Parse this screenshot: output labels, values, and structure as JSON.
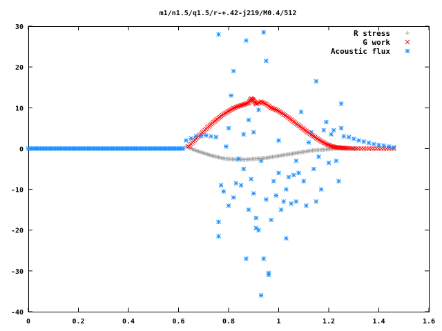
{
  "chart_data": {
    "type": "scatter",
    "title": "m1/n1.5/q1.5/r-+.42-j219/M0.4/512",
    "xlim": [
      0,
      1.6
    ],
    "ylim": [
      -40,
      30
    ],
    "x_ticks": [
      "0",
      "0.2",
      "0.4",
      "0.6",
      "0.8",
      "1",
      "1.2",
      "1.4",
      "1.6"
    ],
    "y_ticks": [
      "30",
      "20",
      "10",
      "0",
      "-10",
      "-20",
      "-30",
      "-40"
    ],
    "legend_position": "top-right",
    "grid": false,
    "series": [
      {
        "name": "R stress",
        "marker": "+",
        "color": "#a0a0a0",
        "points": [
          [
            0.63,
            0.6
          ],
          [
            0.65,
            0.0
          ],
          [
            0.67,
            -0.5
          ],
          [
            0.69,
            -0.9
          ],
          [
            0.71,
            -1.3
          ],
          [
            0.73,
            -1.7
          ],
          [
            0.75,
            -2.0
          ],
          [
            0.77,
            -2.3
          ],
          [
            0.79,
            -2.5
          ],
          [
            0.81,
            -2.6
          ],
          [
            0.83,
            -2.7
          ],
          [
            0.85,
            -2.7
          ],
          [
            0.87,
            -2.7
          ],
          [
            0.89,
            -2.6
          ],
          [
            0.91,
            -2.5
          ],
          [
            0.93,
            -2.4
          ],
          [
            0.95,
            -2.3
          ],
          [
            0.97,
            -2.1
          ],
          [
            0.99,
            -1.9
          ],
          [
            1.01,
            -1.7
          ],
          [
            1.03,
            -1.5
          ],
          [
            1.05,
            -1.3
          ],
          [
            1.07,
            -1.1
          ],
          [
            1.09,
            -0.9
          ],
          [
            1.11,
            -0.7
          ],
          [
            1.13,
            -0.5
          ],
          [
            1.15,
            -0.4
          ],
          [
            1.17,
            -0.3
          ],
          [
            1.19,
            -0.2
          ],
          [
            1.21,
            -0.1
          ],
          [
            1.23,
            0.0
          ],
          [
            1.25,
            0.0
          ],
          [
            1.27,
            0.0
          ],
          [
            1.29,
            0.0
          ],
          [
            1.31,
            0.0
          ]
        ]
      },
      {
        "name": "G work",
        "marker": "x",
        "color": "#ff0000",
        "points": [
          [
            0.64,
            0.5
          ],
          [
            0.66,
            1.8
          ],
          [
            0.68,
            3.0
          ],
          [
            0.7,
            4.2
          ],
          [
            0.72,
            5.4
          ],
          [
            0.74,
            6.5
          ],
          [
            0.76,
            7.5
          ],
          [
            0.78,
            8.4
          ],
          [
            0.8,
            9.2
          ],
          [
            0.82,
            9.9
          ],
          [
            0.84,
            10.4
          ],
          [
            0.86,
            10.8
          ],
          [
            0.88,
            11.2
          ],
          [
            0.89,
            12.3
          ],
          [
            0.9,
            11.8
          ],
          [
            0.91,
            10.9
          ],
          [
            0.93,
            11.5
          ],
          [
            0.95,
            10.9
          ],
          [
            0.97,
            10.0
          ],
          [
            0.99,
            9.5
          ],
          [
            1.01,
            8.8
          ],
          [
            1.03,
            8.0
          ],
          [
            1.05,
            7.1
          ],
          [
            1.07,
            6.1
          ],
          [
            1.09,
            5.2
          ],
          [
            1.11,
            4.3
          ],
          [
            1.13,
            3.4
          ],
          [
            1.15,
            2.6
          ],
          [
            1.17,
            1.8
          ],
          [
            1.19,
            1.1
          ],
          [
            1.21,
            0.6
          ],
          [
            1.23,
            0.3
          ],
          [
            1.25,
            0.2
          ],
          [
            1.27,
            0.1
          ],
          [
            1.3,
            0.0
          ],
          [
            1.34,
            0.0
          ],
          [
            1.38,
            0.0
          ],
          [
            1.42,
            0.0
          ],
          [
            1.46,
            0.0
          ]
        ]
      },
      {
        "name": "Acoustic flux",
        "marker": "*",
        "color": "#1e90ff",
        "baseline": {
          "x_start": 0.0,
          "x_end": 0.62,
          "y": 0.0
        },
        "points": [
          [
            0.63,
            2.0
          ],
          [
            0.65,
            2.5
          ],
          [
            0.67,
            3.0
          ],
          [
            0.69,
            3.1
          ],
          [
            0.71,
            3.2
          ],
          [
            0.73,
            3.0
          ],
          [
            0.75,
            2.8
          ],
          [
            0.76,
            28.0
          ],
          [
            0.76,
            -21.5
          ],
          [
            0.76,
            -18.0
          ],
          [
            0.77,
            -9.0
          ],
          [
            0.78,
            -10.5
          ],
          [
            0.79,
            0.5
          ],
          [
            0.8,
            5.0
          ],
          [
            0.8,
            -14.0
          ],
          [
            0.81,
            13.0
          ],
          [
            0.82,
            19.0
          ],
          [
            0.82,
            -12.0
          ],
          [
            0.83,
            -8.5
          ],
          [
            0.84,
            -2.5
          ],
          [
            0.85,
            -9.0
          ],
          [
            0.86,
            -5.0
          ],
          [
            0.86,
            3.5
          ],
          [
            0.87,
            26.5
          ],
          [
            0.87,
            -27.0
          ],
          [
            0.88,
            7.0
          ],
          [
            0.88,
            -15.0
          ],
          [
            0.89,
            -7.5
          ],
          [
            0.9,
            -11.0
          ],
          [
            0.9,
            4.0
          ],
          [
            0.91,
            -17.0
          ],
          [
            0.91,
            -19.5
          ],
          [
            0.92,
            9.5
          ],
          [
            0.92,
            -20.0
          ],
          [
            0.93,
            -36.0
          ],
          [
            0.93,
            -3.0
          ],
          [
            0.94,
            28.5
          ],
          [
            0.94,
            -27.0
          ],
          [
            0.95,
            21.5
          ],
          [
            0.95,
            -12.5
          ],
          [
            0.96,
            -30.5
          ],
          [
            0.96,
            -31.0
          ],
          [
            0.97,
            -17.5
          ],
          [
            0.98,
            -8.0
          ],
          [
            0.99,
            -11.5
          ],
          [
            1.0,
            -6.0
          ],
          [
            1.0,
            2.0
          ],
          [
            1.01,
            -15.0
          ],
          [
            1.02,
            -13.0
          ],
          [
            1.03,
            -22.0
          ],
          [
            1.03,
            -10.0
          ],
          [
            1.04,
            -7.0
          ],
          [
            1.05,
            -13.5
          ],
          [
            1.06,
            -6.5
          ],
          [
            1.07,
            -3.0
          ],
          [
            1.07,
            -13.0
          ],
          [
            1.08,
            -6.0
          ],
          [
            1.09,
            9.0
          ],
          [
            1.1,
            -8.0
          ],
          [
            1.11,
            -14.0
          ],
          [
            1.12,
            1.5
          ],
          [
            1.13,
            4.0
          ],
          [
            1.14,
            -5.0
          ],
          [
            1.15,
            16.5
          ],
          [
            1.15,
            -13.0
          ],
          [
            1.16,
            -2.0
          ],
          [
            1.17,
            -10.0
          ],
          [
            1.18,
            4.5
          ],
          [
            1.19,
            6.5
          ],
          [
            1.2,
            -3.5
          ],
          [
            1.21,
            3.5
          ],
          [
            1.22,
            4.5
          ],
          [
            1.23,
            -3.0
          ],
          [
            1.24,
            -8.0
          ],
          [
            1.25,
            11.0
          ],
          [
            1.25,
            5.0
          ],
          [
            1.26,
            3.0
          ],
          [
            1.28,
            2.8
          ],
          [
            1.3,
            2.4
          ],
          [
            1.32,
            2.0
          ],
          [
            1.34,
            1.7
          ],
          [
            1.36,
            1.4
          ],
          [
            1.38,
            1.1
          ],
          [
            1.4,
            0.9
          ],
          [
            1.42,
            0.7
          ],
          [
            1.44,
            0.5
          ],
          [
            1.46,
            0.3
          ]
        ]
      }
    ]
  }
}
